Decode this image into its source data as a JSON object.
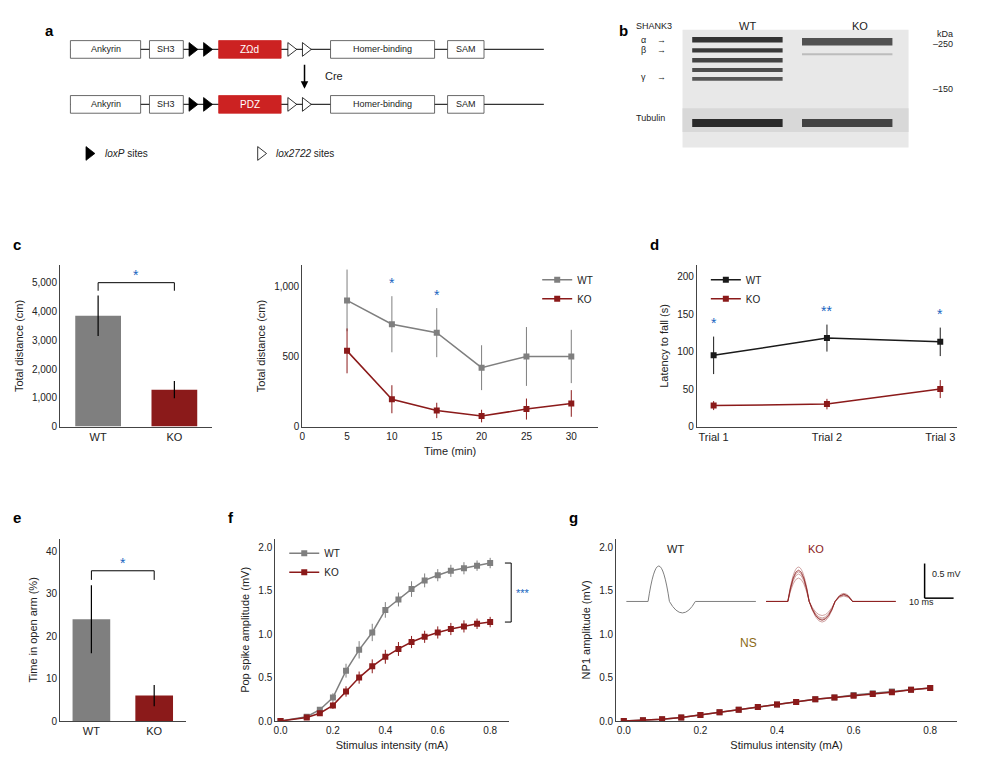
{
  "chart_data": [
    {
      "type": "diagram",
      "title": "a",
      "color": "#CC2222",
      "annotations": [
        "Ankyrin",
        "SH3",
        "ZΩd",
        "Homer-binding",
        "SAM",
        "Cre",
        "Ankyrin",
        "SH3",
        "PDZ",
        "Homer-binding",
        "SAM",
        "loxP sites",
        "lox2722 sites"
      ]
    },
    {
      "type": "blot",
      "title": "b",
      "annotations": [
        "SHANK3",
        "WT",
        "KO",
        "kDa",
        "–250",
        "α",
        "→",
        "β",
        "→",
        "γ",
        "→",
        "–150",
        "Tubulin"
      ]
    },
    {
      "type": "bar",
      "title": "c",
      "categories": [
        "WT",
        "KO"
      ],
      "values": [
        3850,
        1280
      ],
      "errors": [
        700,
        300
      ],
      "colors": [
        "#7f7f7f",
        "#8B1A1A"
      ],
      "ylabel": "Total distance (cm)",
      "ylim": [
        0,
        5600
      ],
      "yticks": [
        0,
        {
          "value": 1000,
          "label": "1,000"
        },
        {
          "value": 2000,
          "label": "2,000"
        },
        {
          "value": 3000,
          "label": "3,000"
        },
        {
          "value": 4000,
          "label": "4,000"
        },
        {
          "value": 5000,
          "label": "5,000"
        }
      ],
      "grid": false,
      "annotations": [
        {
          "text": "*",
          "color": "#1565C0"
        }
      ]
    },
    {
      "type": "line",
      "x": [
        5,
        10,
        15,
        20,
        25,
        30
      ],
      "series": [
        {
          "name": "WT",
          "color": "#7f7f7f",
          "marker": "square",
          "values": [
            900,
            730,
            670,
            420,
            500,
            500
          ],
          "errors": [
            220,
            200,
            175,
            160,
            210,
            190
          ]
        },
        {
          "name": "KO",
          "color": "#8B1A1A",
          "marker": "square",
          "values": [
            540,
            195,
            115,
            75,
            125,
            165
          ],
          "errors": [
            160,
            100,
            55,
            45,
            75,
            95
          ]
        }
      ],
      "xlabel": "Time (min)",
      "ylabel": "Total distance (cm)",
      "xlim": [
        0,
        33
      ],
      "xticks": [
        0,
        5,
        10,
        15,
        20,
        25,
        30
      ],
      "ylim": [
        0,
        1150
      ],
      "yticks": [
        0,
        500,
        {
          "value": 1000,
          "label": "1,000"
        }
      ],
      "legend": "upper right",
      "grid": false,
      "annotations": [
        {
          "text": "*",
          "x": 10,
          "color": "#1565C0"
        },
        {
          "text": "*",
          "x": 15,
          "color": "#1565C0"
        }
      ]
    },
    {
      "type": "line",
      "title": "d",
      "categories": [
        "Trial 1",
        "Trial 2",
        "Trial 3"
      ],
      "series": [
        {
          "name": "WT",
          "color": "#1a1a1a",
          "marker": "square",
          "values": [
            95,
            118,
            113
          ],
          "errors": [
            25,
            18,
            19
          ]
        },
        {
          "name": "KO",
          "color": "#8B1A1A",
          "marker": "square",
          "values": [
            28,
            30,
            50
          ],
          "errors": [
            6,
            7,
            12
          ]
        }
      ],
      "ylabel": "Latency to fall (s)",
      "ylim": [
        0,
        215
      ],
      "yticks": [
        0,
        50,
        100,
        150,
        200
      ],
      "legend": "upper left",
      "grid": false,
      "annotations": [
        {
          "text": "*",
          "category": "Trial 1",
          "color": "#1565C0"
        },
        {
          "text": "**",
          "category": "Trial 2",
          "color": "#1565C0"
        },
        {
          "text": "*",
          "category": "Trial 3",
          "color": "#1565C0"
        }
      ]
    },
    {
      "type": "bar",
      "title": "e",
      "categories": [
        "WT",
        "KO"
      ],
      "values": [
        24,
        6
      ],
      "errors": [
        8,
        2.5
      ],
      "colors": [
        "#7f7f7f",
        "#8B1A1A"
      ],
      "ylabel": "Time in open arm (%)",
      "ylim": [
        0,
        43
      ],
      "yticks": [
        0,
        10,
        20,
        30,
        40
      ],
      "grid": false,
      "annotations": [
        {
          "text": "*",
          "color": "#1565C0"
        }
      ]
    },
    {
      "type": "line",
      "title": "f",
      "x": [
        0.0,
        0.1,
        0.15,
        0.2,
        0.25,
        0.3,
        0.35,
        0.4,
        0.45,
        0.5,
        0.55,
        0.6,
        0.65,
        0.7,
        0.75,
        0.8
      ],
      "series": [
        {
          "name": "WT",
          "color": "#7f7f7f",
          "marker": "square",
          "values": [
            0.0,
            0.05,
            0.13,
            0.27,
            0.58,
            0.82,
            1.02,
            1.28,
            1.4,
            1.52,
            1.62,
            1.68,
            1.73,
            1.76,
            1.79,
            1.82
          ],
          "errors": [
            0.0,
            0.02,
            0.03,
            0.05,
            0.08,
            0.1,
            0.1,
            0.09,
            0.08,
            0.09,
            0.08,
            0.07,
            0.07,
            0.07,
            0.06,
            0.06
          ]
        },
        {
          "name": "KO",
          "color": "#8B1A1A",
          "marker": "square",
          "values": [
            0.0,
            0.04,
            0.09,
            0.18,
            0.34,
            0.5,
            0.63,
            0.74,
            0.83,
            0.91,
            0.97,
            1.02,
            1.06,
            1.09,
            1.12,
            1.14
          ],
          "errors": [
            0.0,
            0.02,
            0.03,
            0.04,
            0.06,
            0.07,
            0.08,
            0.08,
            0.08,
            0.07,
            0.07,
            0.07,
            0.07,
            0.07,
            0.06,
            0.06
          ]
        }
      ],
      "xlabel": "Stimulus intensity (mA)",
      "ylabel": "Pop spike amplitude (mV)",
      "xlim": [
        -0.02,
        0.87
      ],
      "xticks": [
        {
          "value": 0,
          "label": "0.0"
        },
        0.2,
        0.4,
        0.6,
        0.8
      ],
      "ylim": [
        0,
        2.1
      ],
      "yticks": [
        {
          "value": 0,
          "label": "0.0"
        },
        0.5,
        {
          "value": 1,
          "label": "1.0"
        },
        1.5,
        {
          "value": 2,
          "label": "2.0"
        }
      ],
      "legend": "upper left",
      "grid": false,
      "annotations": [
        {
          "text": "***",
          "color": "#1565C0"
        }
      ]
    },
    {
      "type": "line",
      "title": "g",
      "x": [
        0.0,
        0.05,
        0.1,
        0.15,
        0.2,
        0.25,
        0.3,
        0.35,
        0.4,
        0.45,
        0.5,
        0.55,
        0.6,
        0.65,
        0.7,
        0.75,
        0.8
      ],
      "series": [
        {
          "name": "WT",
          "color": "#7f7f7f",
          "marker": "square",
          "values": [
            0.0,
            0.01,
            0.02,
            0.04,
            0.07,
            0.1,
            0.13,
            0.16,
            0.19,
            0.22,
            0.25,
            0.27,
            0.3,
            0.32,
            0.34,
            0.36,
            0.38
          ],
          "errors": [
            0.0,
            0.005,
            0.01,
            0.01,
            0.015,
            0.015,
            0.015,
            0.015,
            0.015,
            0.015,
            0.015,
            0.015,
            0.015,
            0.015,
            0.015,
            0.015,
            0.015
          ]
        },
        {
          "name": "KO",
          "color": "#8B1A1A",
          "marker": "square",
          "values": [
            0.0,
            0.01,
            0.02,
            0.04,
            0.07,
            0.1,
            0.13,
            0.16,
            0.19,
            0.22,
            0.25,
            0.27,
            0.29,
            0.31,
            0.33,
            0.36,
            0.38
          ],
          "errors": [
            0.0,
            0.005,
            0.01,
            0.01,
            0.015,
            0.015,
            0.015,
            0.015,
            0.015,
            0.015,
            0.015,
            0.015,
            0.015,
            0.015,
            0.015,
            0.015,
            0.015
          ]
        }
      ],
      "xlabel": "Stimulus intensity (mA)",
      "ylabel": "NP1 amplitude (mV)",
      "xlim": [
        -0.02,
        0.87
      ],
      "xticks": [
        {
          "value": 0,
          "label": "0.0"
        },
        0.2,
        0.4,
        0.6,
        0.8
      ],
      "ylim": [
        0,
        2.1
      ],
      "yticks": [
        {
          "value": 0,
          "label": "0.0"
        },
        0.5,
        {
          "value": 1,
          "label": "1.0"
        },
        1.5,
        {
          "value": 2,
          "label": "2.0"
        }
      ],
      "grid": false,
      "annotations": [
        {
          "text": "NS",
          "color": "#8B6914"
        },
        {
          "text": "WT"
        },
        {
          "text": "KO",
          "color": "#8B1A1A"
        },
        {
          "text": "0.5 mV"
        },
        {
          "text": "10 ms"
        }
      ]
    }
  ]
}
